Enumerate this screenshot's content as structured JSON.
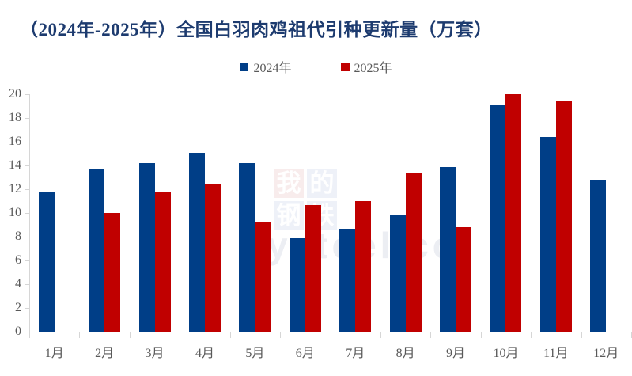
{
  "title": "（2024年-2025年）全国白羽肉鸡祖代引种更新量（万套）",
  "legend": {
    "items": [
      {
        "label": "2024年",
        "color": "#003e87"
      },
      {
        "label": "2025年",
        "color": "#c00000"
      }
    ]
  },
  "watermark": {
    "grid_chars": [
      "我",
      "的",
      "钢",
      "铁"
    ],
    "grid_colors": [
      "#f8ecec",
      "#eef1f8",
      "#eef1f8",
      "#eef1f8"
    ],
    "text": "ysteel.co"
  },
  "chart_data": {
    "type": "bar",
    "title": "（2024年-2025年）全国白羽肉鸡祖代引种更新量（万套）",
    "categories": [
      "1月",
      "2月",
      "3月",
      "4月",
      "5月",
      "6月",
      "7月",
      "8月",
      "9月",
      "10月",
      "11月",
      "12月"
    ],
    "series": [
      {
        "name": "2024年",
        "color": "#003e87",
        "values": [
          11.8,
          13.7,
          14.2,
          15.1,
          14.2,
          7.9,
          8.7,
          9.8,
          13.9,
          19.1,
          16.4,
          12.8
        ]
      },
      {
        "name": "2025年",
        "color": "#c00000",
        "values": [
          null,
          10.0,
          11.8,
          12.4,
          9.2,
          10.7,
          11.0,
          13.4,
          8.8,
          20.0,
          19.5,
          null
        ]
      }
    ],
    "xlabel": "",
    "ylabel": "",
    "ylim": [
      0,
      20
    ],
    "yticks": [
      0,
      2,
      4,
      6,
      8,
      10,
      12,
      14,
      16,
      18,
      20
    ],
    "grid": false,
    "legend_position": "top-center"
  },
  "colors": {
    "title": "#1d3b6f",
    "axis_text": "#595959",
    "axis_line": "#d6d6d6",
    "background": "#ffffff"
  }
}
